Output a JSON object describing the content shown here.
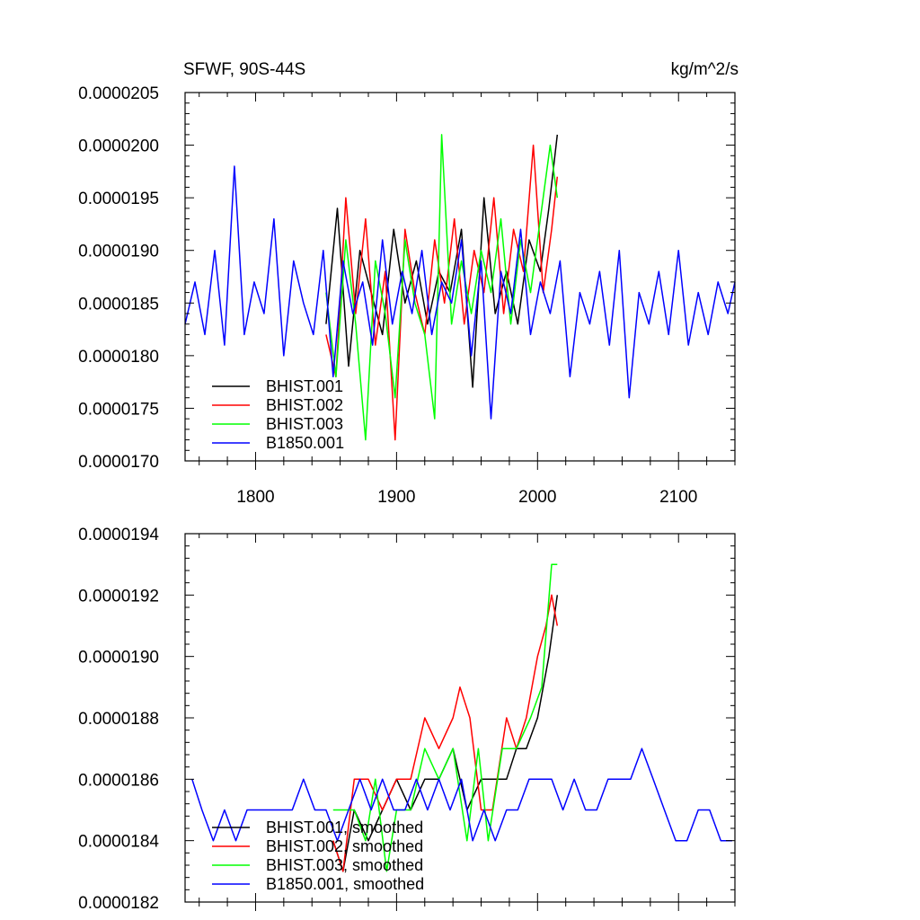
{
  "chart_data": [
    {
      "type": "line",
      "title_left": "SFWF, 90S-44S",
      "title_right": "kg/m^2/s",
      "xlim": [
        1750,
        2140
      ],
      "ylim": [
        1.7e-05,
        2.05e-05
      ],
      "xticks": [
        1800,
        1900,
        2000,
        2100
      ],
      "xtick_labels": [
        "1800",
        "1900",
        "2000",
        "2100"
      ],
      "yticks": [
        1.7e-05,
        1.75e-05,
        1.8e-05,
        1.85e-05,
        1.9e-05,
        1.95e-05,
        2e-05,
        2.05e-05
      ],
      "ytick_labels": [
        "0.0000170",
        "0.0000175",
        "0.0000180",
        "0.0000185",
        "0.0000190",
        "0.0000195",
        "0.0000200",
        "0.0000205"
      ],
      "legend": [
        "BHIST.001",
        "BHIST.002",
        "BHIST.003",
        "B1850.001"
      ],
      "series": [
        {
          "name": "BHIST.001",
          "color": "#000000",
          "x": [
            1850,
            1858,
            1866,
            1874,
            1882,
            1890,
            1898,
            1906,
            1914,
            1922,
            1930,
            1938,
            1946,
            1954,
            1962,
            1970,
            1978,
            1986,
            1994,
            2002,
            2008,
            2014
          ],
          "values": [
            1.83e-05,
            1.94e-05,
            1.79e-05,
            1.9e-05,
            1.86e-05,
            1.82e-05,
            1.92e-05,
            1.85e-05,
            1.89e-05,
            1.83e-05,
            1.88e-05,
            1.86e-05,
            1.92e-05,
            1.77e-05,
            1.95e-05,
            1.84e-05,
            1.88e-05,
            1.83e-05,
            1.91e-05,
            1.88e-05,
            1.94e-05,
            2.01e-05
          ]
        },
        {
          "name": "BHIST.002",
          "color": "#ff0000",
          "x": [
            1850,
            1857,
            1864,
            1871,
            1878,
            1885,
            1892,
            1899,
            1906,
            1913,
            1920,
            1927,
            1934,
            1941,
            1948,
            1955,
            1962,
            1969,
            1976,
            1983,
            1990,
            1997,
            2004,
            2010,
            2014
          ],
          "values": [
            1.82e-05,
            1.78e-05,
            1.95e-05,
            1.84e-05,
            1.93e-05,
            1.81e-05,
            1.88e-05,
            1.72e-05,
            1.92e-05,
            1.86e-05,
            1.82e-05,
            1.91e-05,
            1.85e-05,
            1.93e-05,
            1.83e-05,
            1.9e-05,
            1.86e-05,
            1.95e-05,
            1.84e-05,
            1.92e-05,
            1.88e-05,
            2e-05,
            1.86e-05,
            1.92e-05,
            1.97e-05
          ]
        },
        {
          "name": "BHIST.003",
          "color": "#00ff00",
          "x": [
            1850,
            1857,
            1864,
            1871,
            1878,
            1885,
            1892,
            1899,
            1906,
            1913,
            1920,
            1927,
            1932,
            1939,
            1946,
            1953,
            1960,
            1967,
            1974,
            1981,
            1988,
            1995,
            2002,
            2009,
            2014
          ],
          "values": [
            1.86e-05,
            1.78e-05,
            1.91e-05,
            1.83e-05,
            1.72e-05,
            1.89e-05,
            1.84e-05,
            1.76e-05,
            1.91e-05,
            1.85e-05,
            1.82e-05,
            1.74e-05,
            2.01e-05,
            1.83e-05,
            1.89e-05,
            1.84e-05,
            1.9e-05,
            1.86e-05,
            1.93e-05,
            1.83e-05,
            1.91e-05,
            1.86e-05,
            1.93e-05,
            2e-05,
            1.95e-05
          ]
        },
        {
          "name": "B1850.001",
          "color": "#0000ff",
          "x": [
            1750,
            1757,
            1764,
            1771,
            1778,
            1785,
            1792,
            1799,
            1806,
            1813,
            1820,
            1827,
            1834,
            1841,
            1848,
            1855,
            1862,
            1869,
            1876,
            1883,
            1890,
            1897,
            1904,
            1911,
            1918,
            1925,
            1932,
            1939,
            1946,
            1953,
            1960,
            1967,
            1974,
            1981,
            1988,
            1995,
            2002,
            2009,
            2016,
            2023,
            2030,
            2037,
            2044,
            2051,
            2058,
            2065,
            2072,
            2079,
            2086,
            2093,
            2100,
            2107,
            2114,
            2121,
            2128,
            2135,
            2140
          ],
          "values": [
            1.83e-05,
            1.87e-05,
            1.82e-05,
            1.9e-05,
            1.81e-05,
            1.98e-05,
            1.82e-05,
            1.87e-05,
            1.84e-05,
            1.93e-05,
            1.8e-05,
            1.89e-05,
            1.85e-05,
            1.82e-05,
            1.9e-05,
            1.78e-05,
            1.89e-05,
            1.84e-05,
            1.87e-05,
            1.81e-05,
            1.91e-05,
            1.83e-05,
            1.88e-05,
            1.84e-05,
            1.9e-05,
            1.82e-05,
            1.87e-05,
            1.85e-05,
            1.91e-05,
            1.8e-05,
            1.89e-05,
            1.74e-05,
            1.88e-05,
            1.84e-05,
            1.92e-05,
            1.82e-05,
            1.87e-05,
            1.84e-05,
            1.89e-05,
            1.78e-05,
            1.86e-05,
            1.83e-05,
            1.88e-05,
            1.81e-05,
            1.9e-05,
            1.76e-05,
            1.86e-05,
            1.83e-05,
            1.88e-05,
            1.82e-05,
            1.9e-05,
            1.81e-05,
            1.86e-05,
            1.82e-05,
            1.87e-05,
            1.84e-05,
            1.87e-05
          ]
        }
      ]
    },
    {
      "type": "line",
      "title": "",
      "xlim": [
        1750,
        2140
      ],
      "ylim": [
        1.82e-05,
        1.94e-05
      ],
      "xticks": [
        1800,
        1900,
        2000,
        2100
      ],
      "yticks": [
        1.82e-05,
        1.84e-05,
        1.86e-05,
        1.88e-05,
        1.9e-05,
        1.92e-05,
        1.94e-05
      ],
      "ytick_labels": [
        "0.0000182",
        "0.0000184",
        "0.0000186",
        "0.0000188",
        "0.0000190",
        "0.0000192",
        "0.0000194"
      ],
      "legend": [
        "BHIST.001, smoothed",
        "BHIST.002, smoothed",
        "BHIST.003, smoothed",
        "B1850.001, smoothed"
      ],
      "series": [
        {
          "name": "BHIST.001, smoothed",
          "color": "#000000",
          "x": [
            1855,
            1862,
            1870,
            1880,
            1890,
            1900,
            1910,
            1920,
            1930,
            1940,
            1950,
            1960,
            1970,
            1978,
            1985,
            1992,
            2000,
            2008,
            2014
          ],
          "values": [
            1.84e-05,
            1.83e-05,
            1.85e-05,
            1.84e-05,
            1.85e-05,
            1.86e-05,
            1.85e-05,
            1.86e-05,
            1.86e-05,
            1.87e-05,
            1.85e-05,
            1.86e-05,
            1.86e-05,
            1.86e-05,
            1.87e-05,
            1.87e-05,
            1.88e-05,
            1.9e-05,
            1.92e-05
          ]
        },
        {
          "name": "BHIST.002, smoothed",
          "color": "#ff0000",
          "x": [
            1855,
            1862,
            1870,
            1880,
            1890,
            1900,
            1910,
            1920,
            1930,
            1940,
            1945,
            1952,
            1960,
            1968,
            1978,
            1985,
            1992,
            2000,
            2006,
            2010,
            2014
          ],
          "values": [
            1.84e-05,
            1.83e-05,
            1.86e-05,
            1.86e-05,
            1.85e-05,
            1.86e-05,
            1.86e-05,
            1.88e-05,
            1.87e-05,
            1.88e-05,
            1.89e-05,
            1.88e-05,
            1.85e-05,
            1.85e-05,
            1.88e-05,
            1.87e-05,
            1.88e-05,
            1.9e-05,
            1.91e-05,
            1.92e-05,
            1.91e-05
          ]
        },
        {
          "name": "BHIST.003, smoothed",
          "color": "#00ff00",
          "x": [
            1855,
            1862,
            1870,
            1878,
            1885,
            1893,
            1900,
            1910,
            1920,
            1930,
            1940,
            1950,
            1958,
            1965,
            1975,
            1985,
            1995,
            2003,
            2010,
            2014
          ],
          "values": [
            1.85e-05,
            1.85e-05,
            1.85e-05,
            1.84e-05,
            1.86e-05,
            1.83e-05,
            1.85e-05,
            1.85e-05,
            1.87e-05,
            1.86e-05,
            1.87e-05,
            1.84e-05,
            1.87e-05,
            1.84e-05,
            1.87e-05,
            1.87e-05,
            1.88e-05,
            1.89e-05,
            1.93e-05,
            1.93e-05
          ]
        },
        {
          "name": "B1850.001, smoothed",
          "color": "#0000ff",
          "x": [
            1755,
            1762,
            1770,
            1778,
            1786,
            1794,
            1802,
            1810,
            1818,
            1826,
            1834,
            1842,
            1850,
            1858,
            1866,
            1874,
            1882,
            1890,
            1898,
            1906,
            1914,
            1922,
            1930,
            1938,
            1946,
            1954,
            1962,
            1970,
            1978,
            1986,
            1994,
            2002,
            2010,
            2018,
            2026,
            2034,
            2042,
            2050,
            2058,
            2066,
            2074,
            2082,
            2090,
            2098,
            2106,
            2114,
            2122,
            2130,
            2138
          ],
          "values": [
            1.86e-05,
            1.85e-05,
            1.84e-05,
            1.85e-05,
            1.84e-05,
            1.85e-05,
            1.85e-05,
            1.85e-05,
            1.85e-05,
            1.85e-05,
            1.86e-05,
            1.85e-05,
            1.85e-05,
            1.84e-05,
            1.85e-05,
            1.86e-05,
            1.85e-05,
            1.86e-05,
            1.85e-05,
            1.85e-05,
            1.86e-05,
            1.85e-05,
            1.86e-05,
            1.85e-05,
            1.86e-05,
            1.84e-05,
            1.85e-05,
            1.84e-05,
            1.85e-05,
            1.85e-05,
            1.86e-05,
            1.86e-05,
            1.86e-05,
            1.85e-05,
            1.86e-05,
            1.85e-05,
            1.85e-05,
            1.86e-05,
            1.86e-05,
            1.86e-05,
            1.87e-05,
            1.86e-05,
            1.85e-05,
            1.84e-05,
            1.84e-05,
            1.85e-05,
            1.85e-05,
            1.84e-05,
            1.84e-05
          ]
        }
      ]
    }
  ]
}
